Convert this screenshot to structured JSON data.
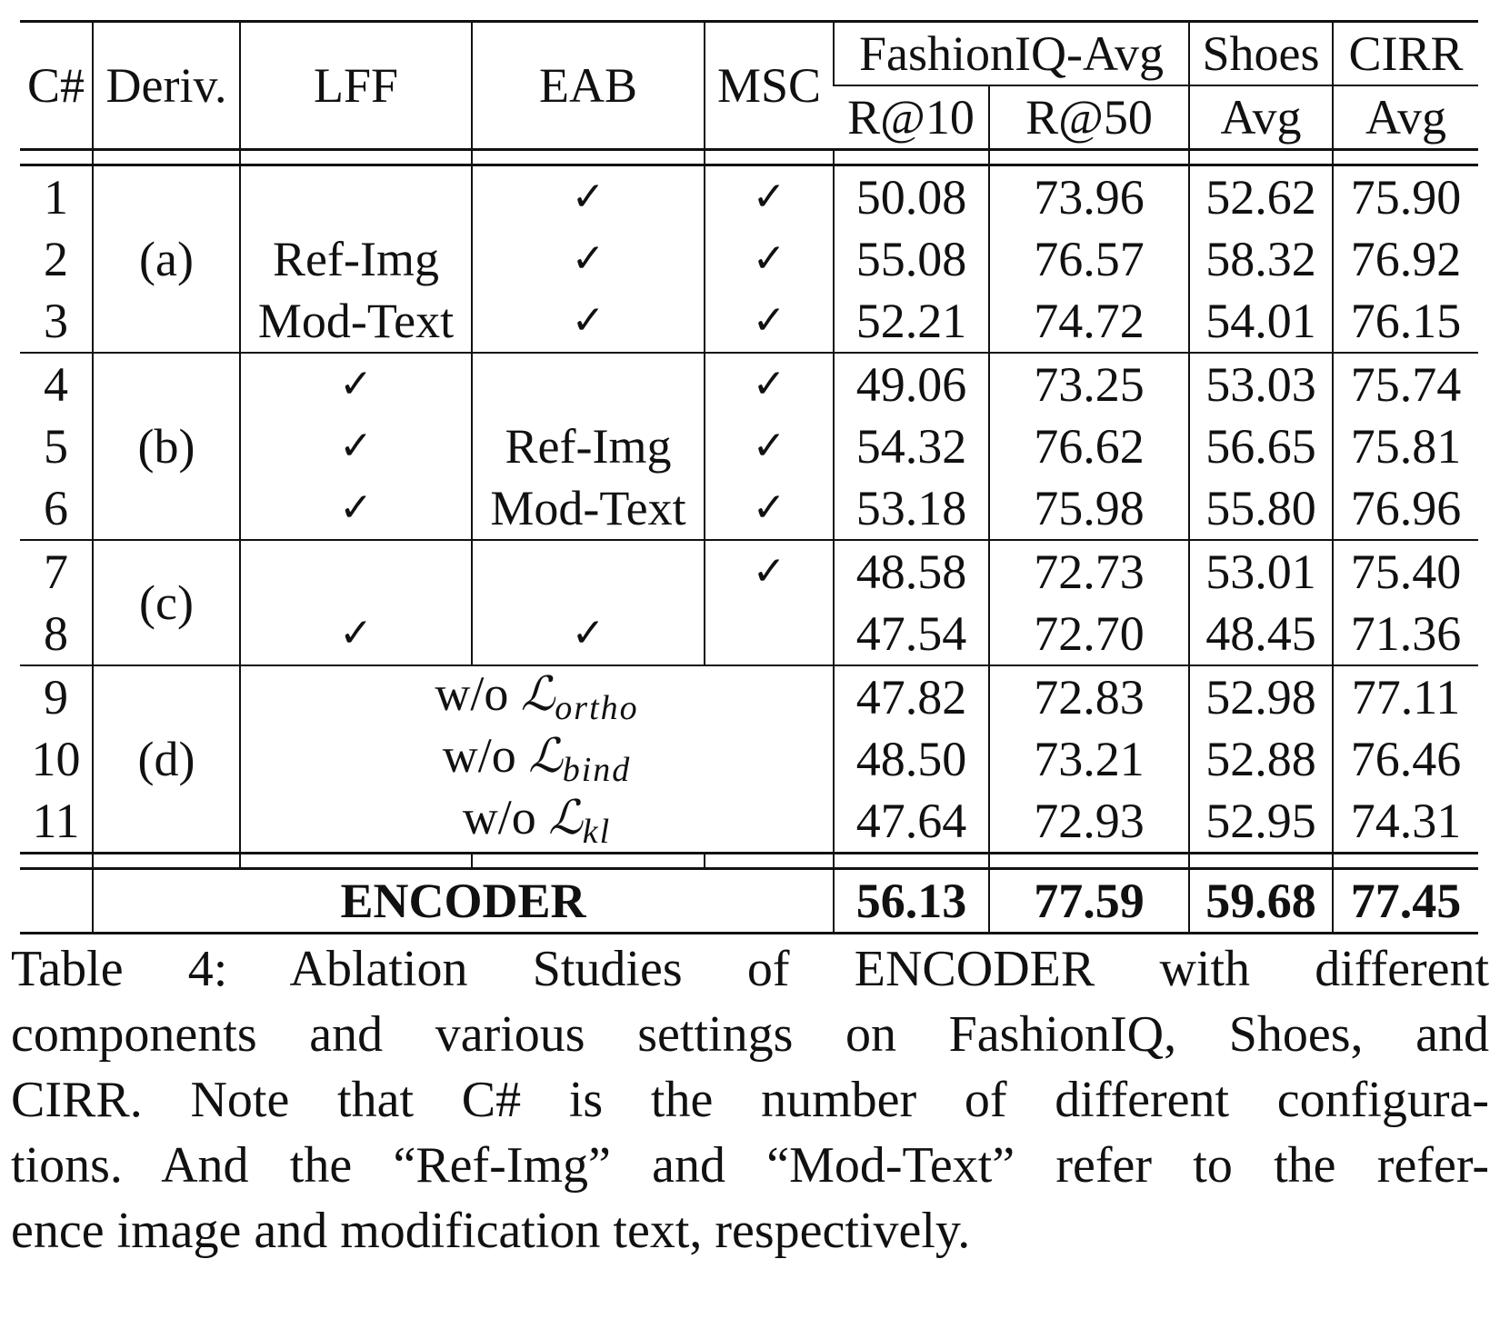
{
  "table": {
    "headers": {
      "c": "C#",
      "deriv": "Deriv.",
      "lff": "LFF",
      "eab": "EAB",
      "msc": "MSC",
      "fashioniq": "FashionIQ-Avg",
      "shoes": "Shoes",
      "cirr": "CIRR",
      "r10": "R@10",
      "r50": "R@50",
      "shoes_avg": "Avg",
      "cirr_avg": "Avg"
    },
    "groups": {
      "a": "(a)",
      "b": "(b)",
      "c": "(c)",
      "d": "(d)"
    },
    "check": "✓",
    "rows": [
      {
        "c": "1",
        "lff": "",
        "eab": "✓",
        "msc": "✓",
        "r10": "50.08",
        "r50": "73.96",
        "shoes": "52.62",
        "cirr": "75.90"
      },
      {
        "c": "2",
        "lff": "Ref-Img",
        "eab": "✓",
        "msc": "✓",
        "r10": "55.08",
        "r50": "76.57",
        "shoes": "58.32",
        "cirr": "76.92"
      },
      {
        "c": "3",
        "lff": "Mod-Text",
        "eab": "✓",
        "msc": "✓",
        "r10": "52.21",
        "r50": "74.72",
        "shoes": "54.01",
        "cirr": "76.15"
      },
      {
        "c": "4",
        "lff": "✓",
        "eab": "",
        "msc": "✓",
        "r10": "49.06",
        "r50": "73.25",
        "shoes": "53.03",
        "cirr": "75.74"
      },
      {
        "c": "5",
        "lff": "✓",
        "eab": "Ref-Img",
        "msc": "✓",
        "r10": "54.32",
        "r50": "76.62",
        "shoes": "56.65",
        "cirr": "75.81"
      },
      {
        "c": "6",
        "lff": "✓",
        "eab": "Mod-Text",
        "msc": "✓",
        "r10": "53.18",
        "r50": "75.98",
        "shoes": "55.80",
        "cirr": "76.96"
      },
      {
        "c": "7",
        "lff": "",
        "eab": "",
        "msc": "✓",
        "r10": "48.58",
        "r50": "72.73",
        "shoes": "53.01",
        "cirr": "75.40"
      },
      {
        "c": "8",
        "lff": "✓",
        "eab": "✓",
        "msc": "",
        "r10": "47.54",
        "r50": "72.70",
        "shoes": "48.45",
        "cirr": "71.36"
      },
      {
        "c": "9",
        "wo": "w/o",
        "loss": "ortho",
        "r10": "47.82",
        "r50": "72.83",
        "shoes": "52.98",
        "cirr": "77.11"
      },
      {
        "c": "10",
        "wo": "w/o",
        "loss": "bind",
        "r10": "48.50",
        "r50": "73.21",
        "shoes": "52.88",
        "cirr": "76.46"
      },
      {
        "c": "11",
        "wo": "w/o",
        "loss": "kl",
        "r10": "47.64",
        "r50": "72.93",
        "shoes": "52.95",
        "cirr": "74.31"
      }
    ],
    "loss_symbol": "ℒ",
    "final": {
      "name": "ENCODER",
      "r10": "56.13",
      "r50": "77.59",
      "shoes": "59.68",
      "cirr": "77.45"
    }
  },
  "caption": {
    "lines": [
      "Table 4: Ablation Studies of ENCODER with different",
      "components and various settings on FashionIQ, Shoes, and",
      "CIRR. Note that C# is the number of different configura-",
      "tions. And the “Ref-Img” and “Mod-Text” refer to the refer-",
      "ence image and modification text, respectively."
    ]
  }
}
